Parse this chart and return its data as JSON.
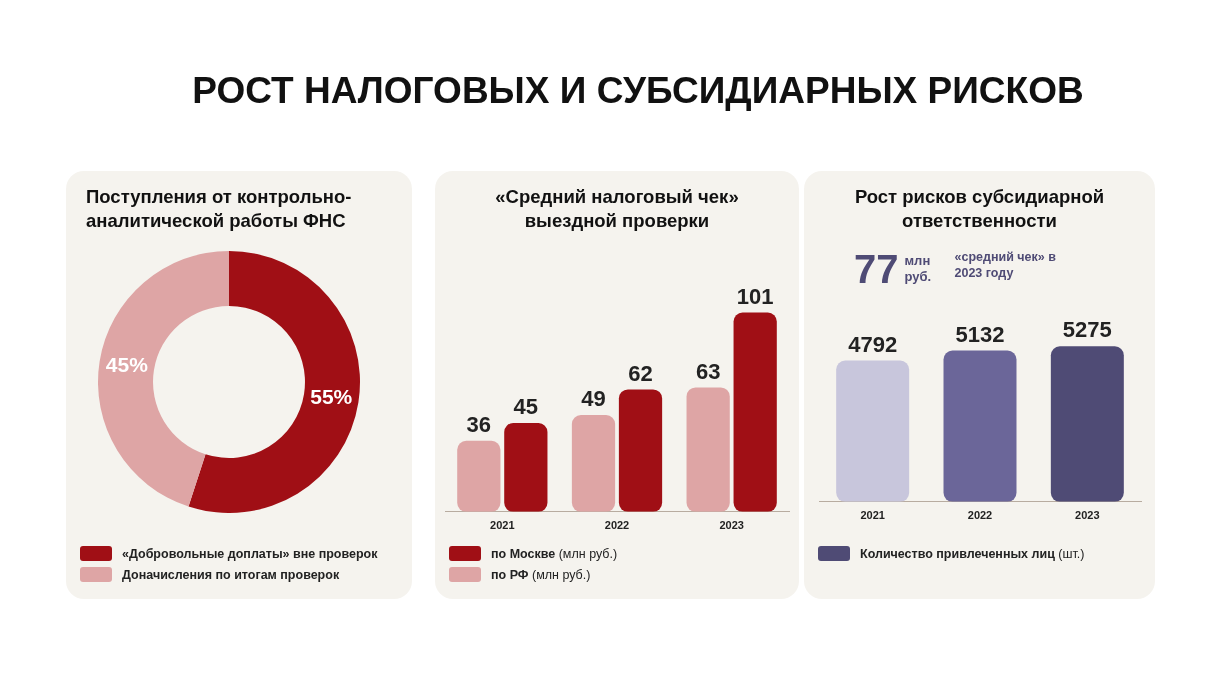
{
  "chart_data": [
    {
      "type": "other",
      "title": "РОСТ НАЛОГОВЫХ И СУБСИДИАРНЫХ РИСКОВ"
    },
    {
      "type": "donut",
      "title": "Поступления от контрольно-аналитической работы ФНС",
      "categories": [
        "«Добровольные доплаты» вне проверок",
        "Доначисления по итогам проверок"
      ],
      "values": [
        55,
        45
      ],
      "colors": [
        "#a00f15",
        "#dea5a5"
      ],
      "value_labels": [
        "55%",
        "45%"
      ],
      "legend": "bottom"
    },
    {
      "type": "bar",
      "title": "«Средний налоговый чек» выездной проверки",
      "categories": [
        "2021",
        "2022",
        "2023"
      ],
      "series": [
        {
          "name": "по РФ (млн руб.)",
          "color": "#dea5a5",
          "values": [
            36,
            49,
            63
          ]
        },
        {
          "name": "по Москве (млн руб.)",
          "color": "#a00f15",
          "values": [
            45,
            62,
            101
          ]
        }
      ],
      "data_labels": true,
      "legend": "bottom"
    },
    {
      "type": "bar",
      "title": "Рост рисков субсидиарной ответственности",
      "categories": [
        "2021",
        "2022",
        "2023"
      ],
      "series": [
        {
          "name": "Количество привлеченных лиц (шт.)",
          "color": "#4f4b75",
          "colors": [
            "#c8c6dc",
            "#6b6699",
            "#4f4b75"
          ],
          "values": [
            4792,
            5132,
            5275
          ]
        }
      ],
      "data_labels": true,
      "legend": "bottom",
      "annotations": [
        "77",
        "млн руб.",
        "«средний чек» в 2023 году"
      ]
    }
  ]
}
